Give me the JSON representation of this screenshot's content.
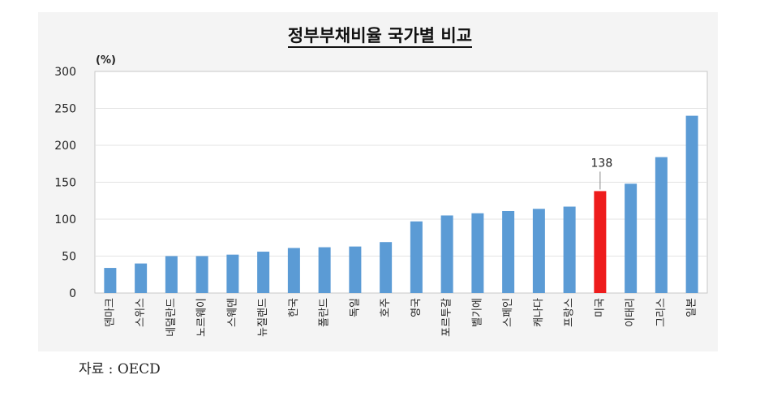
{
  "chart_data": {
    "type": "bar",
    "title": "정부부채비율 국가별 비교",
    "unit_label": "(%)",
    "ylim": [
      0,
      300
    ],
    "yticks": [
      0,
      50,
      100,
      150,
      200,
      250,
      300
    ],
    "categories": [
      "덴마크",
      "스위스",
      "네덜란드",
      "노르웨이",
      "스웨덴",
      "뉴질랜드",
      "한국",
      "폴란드",
      "독일",
      "호주",
      "영국",
      "포르투갈",
      "벨기에",
      "스페인",
      "캐나다",
      "프랑스",
      "미국",
      "이태리",
      "그리스",
      "일본"
    ],
    "values": [
      34,
      40,
      50,
      50,
      52,
      56,
      61,
      62,
      63,
      69,
      97,
      105,
      108,
      111,
      114,
      117,
      138,
      148,
      184,
      240
    ],
    "highlight_index": 16,
    "highlight_label": "138",
    "colors": {
      "bar": "#5b9bd5",
      "highlight": "#ee1c1c"
    },
    "grid": true
  },
  "source": "자료 : OECD"
}
